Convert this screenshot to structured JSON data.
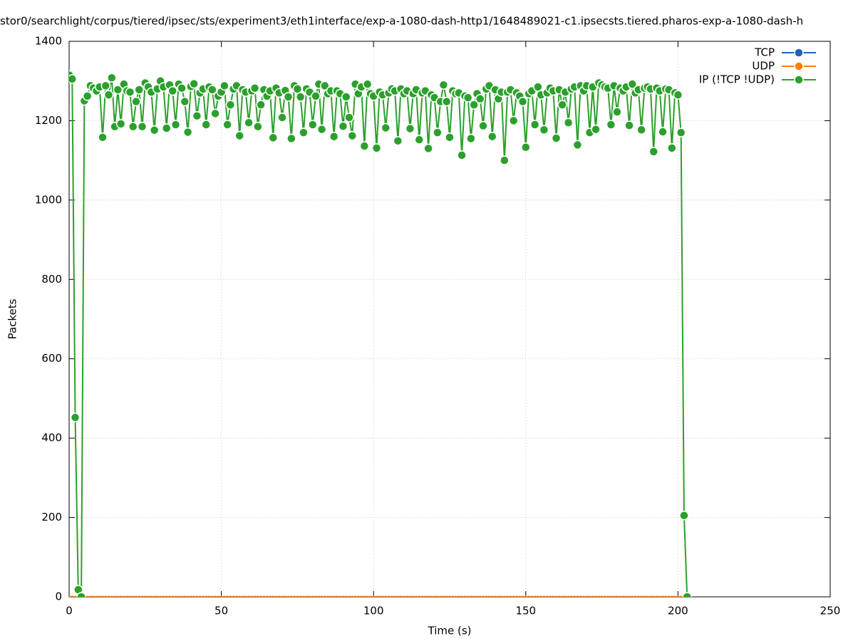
{
  "chart_data": {
    "type": "line",
    "title": "stor0/searchlight/corpus/tiered/ipsec/sts/experiment3/eth1interface/exp-a-1080-dash-http1/1648489021-c1.ipsecsts.tiered.pharos-exp-a-1080-dash-h",
    "x_label": "Time (s)",
    "y_label": "Packets",
    "xlim": [
      0,
      250
    ],
    "xticks": [
      0,
      50,
      100,
      150,
      200,
      250
    ],
    "ylim": [
      0,
      1400
    ],
    "yticks": [
      0,
      200,
      400,
      600,
      800,
      1000,
      1200,
      1400
    ],
    "grid": true,
    "legend": "top-right",
    "x": [
      0,
      1,
      2,
      3,
      4,
      5,
      6,
      7,
      8,
      9,
      10,
      11,
      12,
      13,
      14,
      15,
      16,
      17,
      18,
      19,
      20,
      21,
      22,
      23,
      24,
      25,
      26,
      27,
      28,
      29,
      30,
      31,
      32,
      33,
      34,
      35,
      36,
      37,
      38,
      39,
      40,
      41,
      42,
      43,
      44,
      45,
      46,
      47,
      48,
      49,
      50,
      51,
      52,
      53,
      54,
      55,
      56,
      57,
      58,
      59,
      60,
      61,
      62,
      63,
      64,
      65,
      66,
      67,
      68,
      69,
      70,
      71,
      72,
      73,
      74,
      75,
      76,
      77,
      78,
      79,
      80,
      81,
      82,
      83,
      84,
      85,
      86,
      87,
      88,
      89,
      90,
      91,
      92,
      93,
      94,
      95,
      96,
      97,
      98,
      99,
      100,
      101,
      102,
      103,
      104,
      105,
      106,
      107,
      108,
      109,
      110,
      111,
      112,
      113,
      114,
      115,
      116,
      117,
      118,
      119,
      120,
      121,
      122,
      123,
      124,
      125,
      126,
      127,
      128,
      129,
      130,
      131,
      132,
      133,
      134,
      135,
      136,
      137,
      138,
      139,
      140,
      141,
      142,
      143,
      144,
      145,
      146,
      147,
      148,
      149,
      150,
      151,
      152,
      153,
      154,
      155,
      156,
      157,
      158,
      159,
      160,
      161,
      162,
      163,
      164,
      165,
      166,
      167,
      168,
      169,
      170,
      171,
      172,
      173,
      174,
      175,
      176,
      177,
      178,
      179,
      180,
      181,
      182,
      183,
      184,
      185,
      186,
      187,
      188,
      189,
      190,
      191,
      192,
      193,
      194,
      195,
      196,
      197,
      198,
      199,
      200,
      201,
      202,
      203
    ],
    "series": [
      {
        "name": "TCP",
        "color": "#1f64b4",
        "values": [
          0,
          0,
          0,
          0,
          0,
          0,
          0,
          0,
          0,
          0,
          0,
          0,
          0,
          0,
          0,
          0,
          0,
          0,
          0,
          0,
          0,
          0,
          0,
          0,
          0,
          0,
          0,
          0,
          0,
          0,
          0,
          0,
          0,
          0,
          0,
          0,
          0,
          0,
          0,
          0,
          0,
          0,
          0,
          0,
          0,
          0,
          0,
          0,
          0,
          0,
          0,
          0,
          0,
          0,
          0,
          0,
          0,
          0,
          0,
          0,
          0,
          0,
          0,
          0,
          0,
          0,
          0,
          0,
          0,
          0,
          0,
          0,
          0,
          0,
          0,
          0,
          0,
          0,
          0,
          0,
          0,
          0,
          0,
          0,
          0,
          0,
          0,
          0,
          0,
          0,
          0,
          0,
          0,
          0,
          0,
          0,
          0,
          0,
          0,
          0,
          0,
          0,
          0,
          0,
          0,
          0,
          0,
          0,
          0,
          0,
          0,
          0,
          0,
          0,
          0,
          0,
          0,
          0,
          0,
          0,
          0,
          0,
          0,
          0,
          0,
          0,
          0,
          0,
          0,
          0,
          0,
          0,
          0,
          0,
          0,
          0,
          0,
          0,
          0,
          0,
          0,
          0,
          0,
          0,
          0,
          0,
          0,
          0,
          0,
          0,
          0,
          0,
          0,
          0,
          0,
          0,
          0,
          0,
          0,
          0,
          0,
          0,
          0,
          0,
          0,
          0,
          0,
          0,
          0,
          0,
          0,
          0,
          0,
          0,
          0,
          0,
          0,
          0,
          0,
          0,
          0,
          0,
          0,
          0,
          0,
          0,
          0,
          0,
          0,
          0,
          0,
          0,
          0,
          0,
          0,
          0,
          0,
          0,
          0,
          0,
          0,
          0,
          0,
          0
        ]
      },
      {
        "name": "UDP",
        "color": "#ff7f0e",
        "values": [
          0,
          0,
          0,
          0,
          0,
          0,
          0,
          0,
          0,
          0,
          0,
          0,
          0,
          0,
          0,
          0,
          0,
          0,
          0,
          0,
          0,
          0,
          0,
          0,
          0,
          0,
          0,
          0,
          0,
          0,
          0,
          0,
          0,
          0,
          0,
          0,
          0,
          0,
          0,
          0,
          0,
          0,
          0,
          0,
          0,
          0,
          0,
          0,
          0,
          0,
          0,
          0,
          0,
          0,
          0,
          0,
          0,
          0,
          0,
          0,
          0,
          0,
          0,
          0,
          0,
          0,
          0,
          0,
          0,
          0,
          0,
          0,
          0,
          0,
          0,
          0,
          0,
          0,
          0,
          0,
          0,
          0,
          0,
          0,
          0,
          0,
          0,
          0,
          0,
          0,
          0,
          0,
          0,
          0,
          0,
          0,
          0,
          0,
          0,
          0,
          0,
          0,
          0,
          0,
          0,
          0,
          0,
          0,
          0,
          0,
          0,
          0,
          0,
          0,
          0,
          0,
          0,
          0,
          0,
          0,
          0,
          0,
          0,
          0,
          0,
          0,
          0,
          0,
          0,
          0,
          0,
          0,
          0,
          0,
          0,
          0,
          0,
          0,
          0,
          0,
          0,
          0,
          0,
          0,
          0,
          0,
          0,
          0,
          0,
          0,
          0,
          0,
          0,
          0,
          0,
          0,
          0,
          0,
          0,
          0,
          0,
          0,
          0,
          0,
          0,
          0,
          0,
          0,
          0,
          0,
          0,
          0,
          0,
          0,
          0,
          0,
          0,
          0,
          0,
          0,
          0,
          0,
          0,
          0,
          0,
          0,
          0,
          0,
          0,
          0,
          0,
          0,
          0,
          0,
          0,
          0,
          0,
          0,
          0,
          0,
          0,
          0,
          0,
          0
        ]
      },
      {
        "name": "IP (!TCP  !UDP)",
        "color": "#2ca02c",
        "values": [
          1315,
          1305,
          452,
          18,
          0,
          1250,
          1262,
          1288,
          1282,
          1275,
          1285,
          1158,
          1288,
          1265,
          1308,
          1185,
          1278,
          1192,
          1292,
          1275,
          1272,
          1185,
          1248,
          1278,
          1185,
          1295,
          1285,
          1272,
          1176,
          1280,
          1300,
          1285,
          1181,
          1290,
          1275,
          1190,
          1292,
          1282,
          1248,
          1171,
          1286,
          1293,
          1212,
          1270,
          1280,
          1190,
          1285,
          1278,
          1218,
          1262,
          1272,
          1288,
          1190,
          1240,
          1280,
          1288,
          1162,
          1278,
          1272,
          1195,
          1275,
          1282,
          1185,
          1240,
          1278,
          1262,
          1275,
          1157,
          1282,
          1270,
          1208,
          1276,
          1260,
          1155,
          1288,
          1280,
          1260,
          1170,
          1280,
          1272,
          1190,
          1262,
          1292,
          1178,
          1288,
          1268,
          1275,
          1160,
          1275,
          1268,
          1186,
          1260,
          1208,
          1162,
          1292,
          1268,
          1285,
          1136,
          1292,
          1268,
          1262,
          1131,
          1272,
          1265,
          1182,
          1270,
          1280,
          1275,
          1149,
          1280,
          1268,
          1275,
          1180,
          1268,
          1278,
          1152,
          1270,
          1275,
          1130,
          1265,
          1258,
          1170,
          1248,
          1290,
          1248,
          1158,
          1275,
          1268,
          1270,
          1113,
          1262,
          1258,
          1155,
          1240,
          1268,
          1255,
          1187,
          1280,
          1288,
          1160,
          1278,
          1255,
          1272,
          1100,
          1272,
          1278,
          1200,
          1270,
          1262,
          1248,
          1133,
          1268,
          1275,
          1190,
          1285,
          1265,
          1177,
          1270,
          1282,
          1275,
          1156,
          1278,
          1240,
          1272,
          1195,
          1280,
          1285,
          1139,
          1288,
          1275,
          1288,
          1170,
          1285,
          1178,
          1295,
          1290,
          1285,
          1282,
          1190,
          1288,
          1222,
          1282,
          1275,
          1285,
          1188,
          1292,
          1270,
          1278,
          1177,
          1282,
          1285,
          1280,
          1122,
          1282,
          1275,
          1172,
          1280,
          1278,
          1131,
          1270,
          1265,
          1170,
          205,
          0
        ]
      }
    ]
  }
}
